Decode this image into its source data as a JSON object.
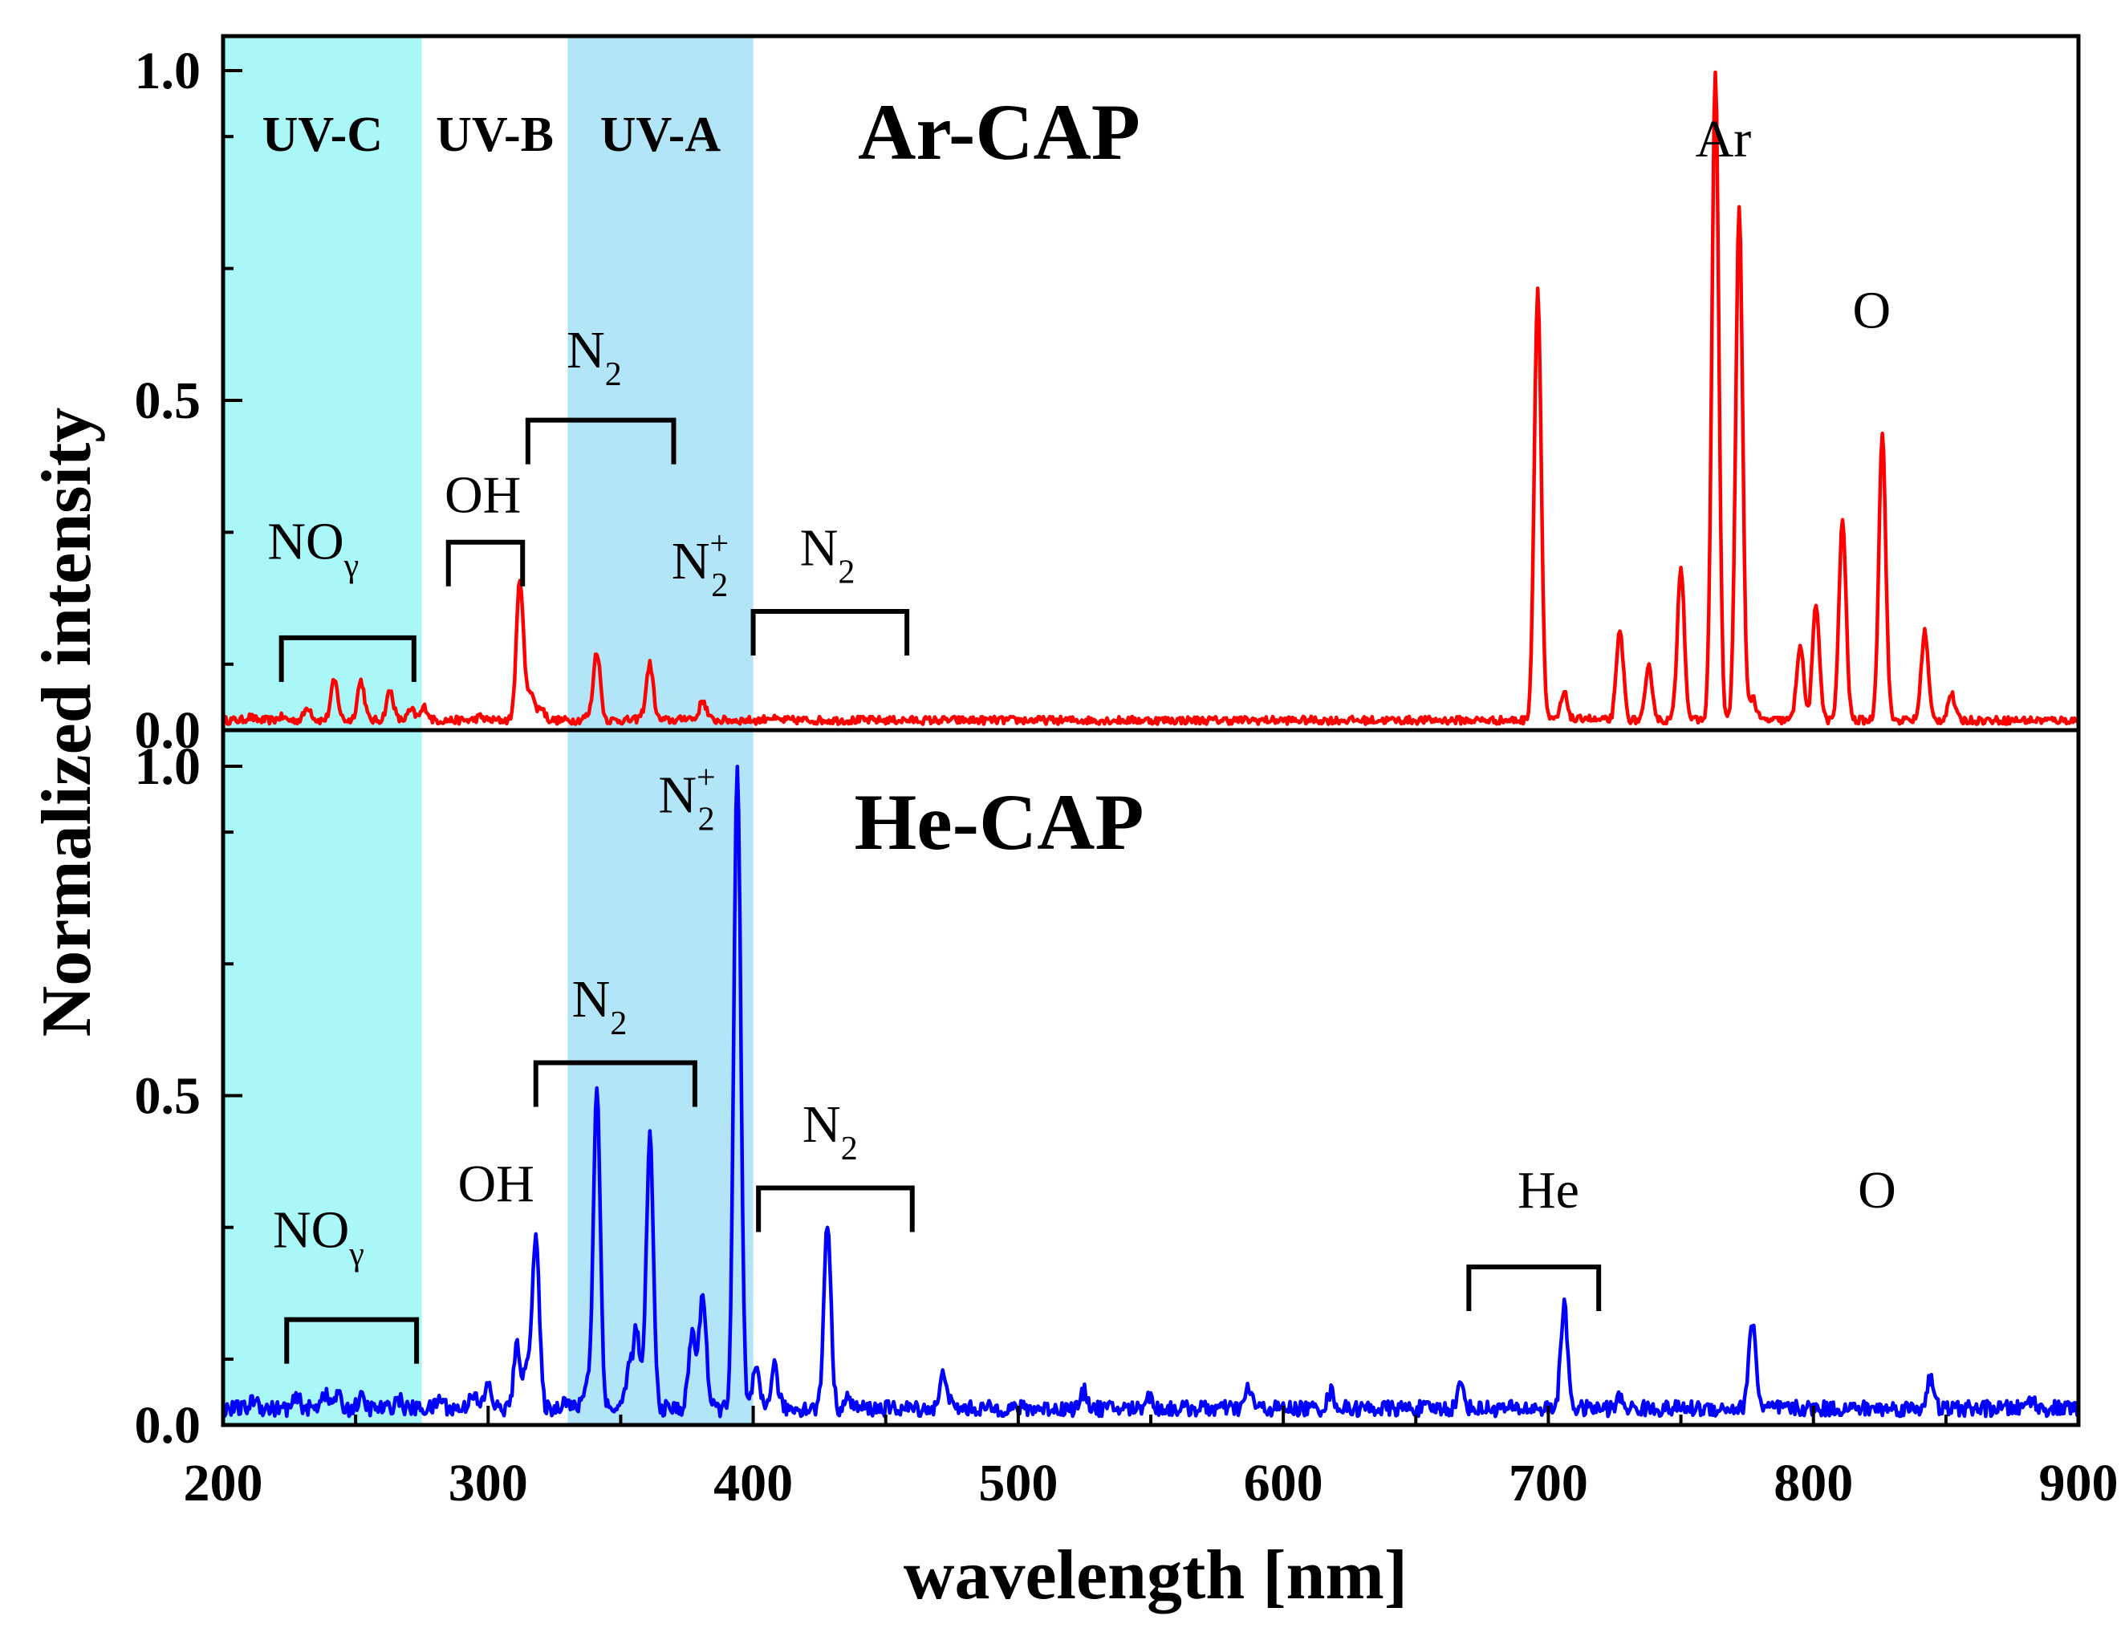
{
  "chart_data": {
    "type": "line",
    "xlabel": "wavelength [nm]",
    "ylabel": "Normalized intensity",
    "xlim": [
      200,
      900
    ],
    "ylim": [
      0,
      1.0
    ],
    "x_ticks": [
      "200",
      "300",
      "400",
      "500",
      "600",
      "700",
      "800",
      "900"
    ],
    "y_ticks": [
      "0.0",
      "0.5",
      "1.0"
    ],
    "bands": [
      {
        "label": "UV-C",
        "x": [
          200,
          275
        ],
        "color": "#AAF7F7"
      },
      {
        "label": "UV-B",
        "x": [
          275,
          330
        ],
        "color": "#FFFFFF"
      },
      {
        "label": "UV-A",
        "x": [
          330,
          400
        ],
        "color": "#B2E5F8"
      }
    ],
    "panels": [
      {
        "title": "Ar-CAP",
        "color": "#FF0000",
        "baseline": 0.015,
        "peaks": [
          [
            210,
            0.02
          ],
          [
            222,
            0.02
          ],
          [
            232,
            0.035
          ],
          [
            242,
            0.075
          ],
          [
            252,
            0.075
          ],
          [
            263,
            0.06
          ],
          [
            271,
            0.03
          ],
          [
            276,
            0.035
          ],
          [
            297,
            0.02
          ],
          [
            312,
            0.23
          ],
          [
            316,
            0.06
          ],
          [
            320,
            0.035
          ],
          [
            337,
            0.02
          ],
          [
            341,
            0.12
          ],
          [
            358,
            0.02
          ],
          [
            361,
            0.1
          ],
          [
            375,
            0.02
          ],
          [
            381,
            0.045
          ],
          [
            392,
            0.015
          ],
          [
            406,
            0.02
          ],
          [
            696,
            0.67
          ],
          [
            706,
            0.055
          ],
          [
            714,
            0.02
          ],
          [
            727,
            0.15
          ],
          [
            738,
            0.095
          ],
          [
            750,
            0.25
          ],
          [
            763,
            1.0
          ],
          [
            772,
            0.79
          ],
          [
            777,
            0.05
          ],
          [
            795,
            0.13
          ],
          [
            801,
            0.19
          ],
          [
            811,
            0.32
          ],
          [
            826,
            0.45
          ],
          [
            842,
            0.15
          ],
          [
            852,
            0.055
          ],
          [
            866,
            0.015
          ]
        ],
        "annotations": [
          {
            "text": "NO",
            "sub": "γ",
            "x": 234,
            "y": 0.26
          },
          {
            "text": "OH",
            "x": 298,
            "y": 0.33
          },
          {
            "text": "N",
            "sub": "2",
            "x": 340,
            "y": 0.55
          },
          {
            "text": "N",
            "sub": "2",
            "sup": "+",
            "x": 380,
            "y": 0.23
          },
          {
            "text": "N",
            "sub": "2",
            "x": 428,
            "y": 0.25
          },
          {
            "text": "Ar",
            "x": 766,
            "y": 0.87
          },
          {
            "text": "O",
            "x": 822,
            "y": 0.61
          }
        ],
        "brackets": [
          {
            "x": [
              222,
              272
            ],
            "y": 0.14
          },
          {
            "x": [
              285,
              313
            ],
            "y": 0.285
          },
          {
            "x": [
              315,
              370
            ],
            "y": 0.47
          },
          {
            "x": [
              400,
              458
            ],
            "y": 0.18
          }
        ]
      },
      {
        "title": "He-CAP",
        "color": "#0000FF",
        "baseline": 0.025,
        "peaks": [
          [
            212,
            0.04
          ],
          [
            228,
            0.04
          ],
          [
            238,
            0.05
          ],
          [
            243,
            0.045
          ],
          [
            252,
            0.04
          ],
          [
            266,
            0.04
          ],
          [
            282,
            0.04
          ],
          [
            294,
            0.05
          ],
          [
            300,
            0.06
          ],
          [
            311,
            0.12
          ],
          [
            315,
            0.09
          ],
          [
            318,
            0.28
          ],
          [
            329,
            0.04
          ],
          [
            337,
            0.06
          ],
          [
            341,
            0.51
          ],
          [
            353,
            0.08
          ],
          [
            356,
            0.14
          ],
          [
            361,
            0.44
          ],
          [
            377,
            0.14
          ],
          [
            381,
            0.2
          ],
          [
            394,
            1.0
          ],
          [
            401,
            0.08
          ],
          [
            408,
            0.09
          ],
          [
            428,
            0.31
          ],
          [
            436,
            0.04
          ],
          [
            472,
            0.08
          ],
          [
            525,
            0.05
          ],
          [
            549,
            0.045
          ],
          [
            587,
            0.055
          ],
          [
            618,
            0.05
          ],
          [
            667,
            0.06
          ],
          [
            706,
            0.18
          ],
          [
            727,
            0.04
          ],
          [
            777,
            0.16
          ],
          [
            844,
            0.07
          ],
          [
            882,
            0.04
          ]
        ],
        "annotations": [
          {
            "text": "NO",
            "sub": "γ",
            "x": 236,
            "y": 0.27
          },
          {
            "text": "OH",
            "x": 303,
            "y": 0.34
          },
          {
            "text": "N",
            "sub": "2",
            "sup": "+",
            "x": 375,
            "y": 0.93
          },
          {
            "text": "N",
            "sub": "2",
            "x": 342,
            "y": 0.62
          },
          {
            "text": "N",
            "sub": "2",
            "x": 429,
            "y": 0.43
          },
          {
            "text": "He",
            "x": 700,
            "y": 0.33
          },
          {
            "text": "O",
            "x": 824,
            "y": 0.33
          }
        ],
        "brackets": [
          {
            "x": [
              224,
              273
            ],
            "y": 0.16
          },
          {
            "x": [
              318,
              378
            ],
            "y": 0.55
          },
          {
            "x": [
              402,
              460
            ],
            "y": 0.36
          },
          {
            "x": [
              670,
              719
            ],
            "y": 0.24
          }
        ]
      }
    ]
  }
}
